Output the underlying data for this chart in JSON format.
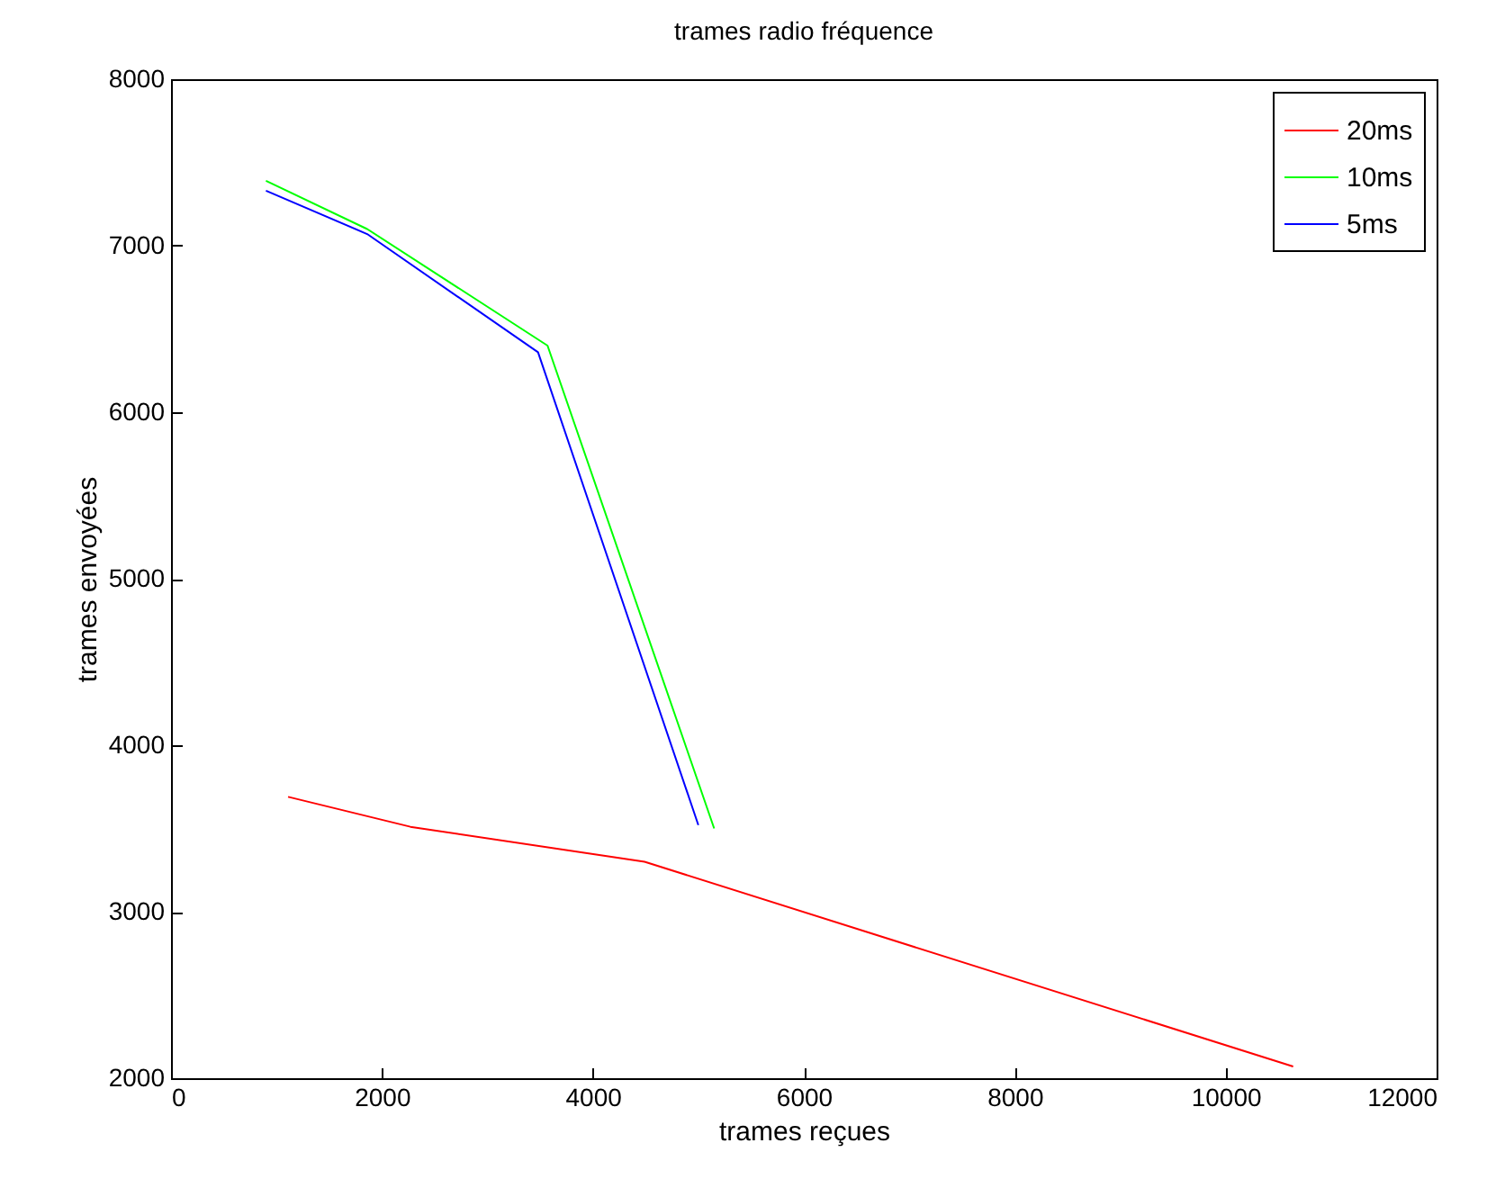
{
  "chart_data": {
    "type": "line",
    "title": "trames radio fréquence",
    "xlabel": "trames reçues",
    "ylabel": "trames envoyées",
    "xlim": [
      0,
      12000
    ],
    "ylim": [
      2000,
      8000
    ],
    "xticks": [
      0,
      2000,
      4000,
      6000,
      8000,
      10000,
      12000
    ],
    "yticks": [
      2000,
      3000,
      4000,
      5000,
      6000,
      7000,
      8000
    ],
    "grid": false,
    "legend": "top right",
    "marker": "none",
    "line_style": "solid",
    "series": [
      {
        "name": "20ms",
        "color": "#ff0000",
        "x": [
          1110,
          2270,
          4490,
          10640
        ],
        "values": [
          3690,
          3510,
          3300,
          2070
        ]
      },
      {
        "name": "10ms",
        "color": "#00ff00",
        "x": [
          900,
          1860,
          3570,
          5150
        ],
        "values": [
          7390,
          7100,
          6400,
          3500
        ]
      },
      {
        "name": "5ms",
        "color": "#0000ff",
        "x": [
          900,
          1860,
          3480,
          5000
        ],
        "values": [
          7330,
          7070,
          6360,
          3520
        ]
      }
    ]
  }
}
